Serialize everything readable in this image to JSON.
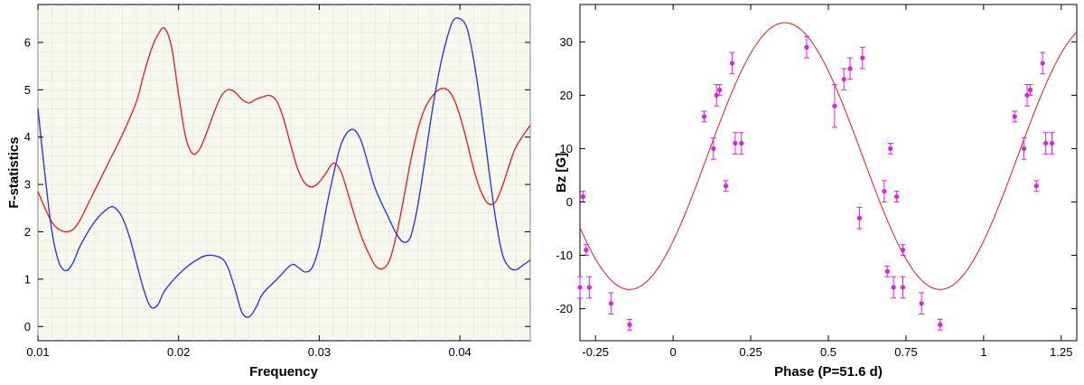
{
  "chart_data": [
    {
      "type": "line",
      "title": "",
      "xlabel": "Frequency",
      "ylabel": "F-statistics",
      "xlim": [
        0.01,
        0.045
      ],
      "ylim": [
        -0.3,
        6.8
      ],
      "xticks": [
        "0.01",
        "0.02",
        "0.03",
        "0.04"
      ],
      "yticks": [
        "0",
        "1",
        "2",
        "3",
        "4",
        "5",
        "6"
      ],
      "xtick_values": [
        0.01,
        0.02,
        0.03,
        0.04
      ],
      "ytick_values": [
        0,
        1,
        2,
        3,
        4,
        5,
        6
      ],
      "grid": true,
      "series": [
        {
          "color": "#e8191b",
          "points": [
            [
              0.01,
              2.85
            ],
            [
              0.0105,
              2.5
            ],
            [
              0.011,
              2.2
            ],
            [
              0.0115,
              2.05
            ],
            [
              0.012,
              2.0
            ],
            [
              0.0125,
              2.05
            ],
            [
              0.013,
              2.25
            ],
            [
              0.0135,
              2.55
            ],
            [
              0.014,
              2.85
            ],
            [
              0.015,
              3.45
            ],
            [
              0.016,
              4.05
            ],
            [
              0.017,
              4.75
            ],
            [
              0.0175,
              5.3
            ],
            [
              0.018,
              5.8
            ],
            [
              0.0185,
              6.15
            ],
            [
              0.019,
              6.3
            ],
            [
              0.0195,
              5.9
            ],
            [
              0.02,
              4.9
            ],
            [
              0.0205,
              4.0
            ],
            [
              0.021,
              3.65
            ],
            [
              0.0215,
              3.75
            ],
            [
              0.022,
              4.1
            ],
            [
              0.0225,
              4.5
            ],
            [
              0.023,
              4.85
            ],
            [
              0.0235,
              5.0
            ],
            [
              0.024,
              4.95
            ],
            [
              0.0245,
              4.8
            ],
            [
              0.025,
              4.72
            ],
            [
              0.0255,
              4.8
            ],
            [
              0.026,
              4.85
            ],
            [
              0.0265,
              4.88
            ],
            [
              0.027,
              4.75
            ],
            [
              0.0275,
              4.35
            ],
            [
              0.028,
              3.8
            ],
            [
              0.0285,
              3.3
            ],
            [
              0.029,
              3.02
            ],
            [
              0.0295,
              2.95
            ],
            [
              0.03,
              3.05
            ],
            [
              0.0305,
              3.25
            ],
            [
              0.031,
              3.45
            ],
            [
              0.0315,
              3.3
            ],
            [
              0.032,
              2.85
            ],
            [
              0.0325,
              2.35
            ],
            [
              0.033,
              1.9
            ],
            [
              0.0335,
              1.55
            ],
            [
              0.034,
              1.28
            ],
            [
              0.0345,
              1.22
            ],
            [
              0.035,
              1.4
            ],
            [
              0.0355,
              1.95
            ],
            [
              0.036,
              2.7
            ],
            [
              0.0365,
              3.5
            ],
            [
              0.037,
              4.15
            ],
            [
              0.0375,
              4.6
            ],
            [
              0.038,
              4.85
            ],
            [
              0.0385,
              5.0
            ],
            [
              0.039,
              5.02
            ],
            [
              0.0395,
              4.85
            ],
            [
              0.04,
              4.45
            ],
            [
              0.0405,
              3.9
            ],
            [
              0.041,
              3.3
            ],
            [
              0.0415,
              2.85
            ],
            [
              0.042,
              2.6
            ],
            [
              0.0425,
              2.62
            ],
            [
              0.043,
              2.95
            ],
            [
              0.0435,
              3.4
            ],
            [
              0.044,
              3.8
            ],
            [
              0.045,
              4.25
            ]
          ]
        },
        {
          "color": "#1f2fe0",
          "points": [
            [
              0.01,
              4.6
            ],
            [
              0.0105,
              3.2
            ],
            [
              0.011,
              2.0
            ],
            [
              0.0115,
              1.35
            ],
            [
              0.012,
              1.18
            ],
            [
              0.0125,
              1.35
            ],
            [
              0.013,
              1.7
            ],
            [
              0.014,
              2.2
            ],
            [
              0.015,
              2.5
            ],
            [
              0.0155,
              2.5
            ],
            [
              0.016,
              2.3
            ],
            [
              0.0165,
              1.9
            ],
            [
              0.017,
              1.35
            ],
            [
              0.0175,
              0.8
            ],
            [
              0.018,
              0.42
            ],
            [
              0.0185,
              0.45
            ],
            [
              0.019,
              0.75
            ],
            [
              0.02,
              1.1
            ],
            [
              0.021,
              1.35
            ],
            [
              0.022,
              1.5
            ],
            [
              0.023,
              1.45
            ],
            [
              0.0235,
              1.25
            ],
            [
              0.024,
              0.8
            ],
            [
              0.0245,
              0.3
            ],
            [
              0.025,
              0.2
            ],
            [
              0.0255,
              0.4
            ],
            [
              0.026,
              0.7
            ],
            [
              0.027,
              1.0
            ],
            [
              0.028,
              1.3
            ],
            [
              0.0285,
              1.25
            ],
            [
              0.029,
              1.15
            ],
            [
              0.0295,
              1.25
            ],
            [
              0.03,
              1.7
            ],
            [
              0.0305,
              2.5
            ],
            [
              0.031,
              3.2
            ],
            [
              0.0315,
              3.8
            ],
            [
              0.032,
              4.1
            ],
            [
              0.0325,
              4.15
            ],
            [
              0.033,
              3.9
            ],
            [
              0.0335,
              3.4
            ],
            [
              0.034,
              2.9
            ],
            [
              0.035,
              2.25
            ],
            [
              0.0355,
              1.95
            ],
            [
              0.036,
              1.78
            ],
            [
              0.0365,
              1.9
            ],
            [
              0.037,
              2.55
            ],
            [
              0.0375,
              3.5
            ],
            [
              0.038,
              4.5
            ],
            [
              0.0385,
              5.35
            ],
            [
              0.039,
              6.0
            ],
            [
              0.0395,
              6.45
            ],
            [
              0.04,
              6.5
            ],
            [
              0.0405,
              6.3
            ],
            [
              0.041,
              5.6
            ],
            [
              0.0415,
              4.6
            ],
            [
              0.042,
              3.45
            ],
            [
              0.0425,
              2.35
            ],
            [
              0.043,
              1.55
            ],
            [
              0.0435,
              1.25
            ],
            [
              0.044,
              1.2
            ],
            [
              0.0445,
              1.3
            ],
            [
              0.045,
              1.4
            ]
          ]
        }
      ]
    },
    {
      "type": "scatter",
      "title": "",
      "xlabel": "Phase (P=51.6 d)",
      "ylabel": "Bz [G]",
      "xlim": [
        -0.3,
        1.3
      ],
      "ylim": [
        -26,
        37
      ],
      "xticks": [
        "-0.25",
        "0",
        "0.25",
        "0.5",
        "0.75",
        "1",
        "1.25"
      ],
      "yticks": [
        "-20",
        "-10",
        "0",
        "10",
        "20",
        "30"
      ],
      "xtick_values": [
        -0.25,
        0,
        0.25,
        0.5,
        0.75,
        1,
        1.25
      ],
      "ytick_values": [
        -20,
        -10,
        0,
        10,
        20,
        30
      ],
      "grid": false,
      "fit": {
        "mean": 8.6,
        "amplitude": 25,
        "max_phase": 0.36,
        "color": "#e8191b"
      },
      "points_color": "#e01ee6",
      "points": [
        {
          "x": -0.3,
          "y": -16,
          "err": 2
        },
        {
          "x": -0.29,
          "y": 1,
          "err": 1
        },
        {
          "x": -0.28,
          "y": -9,
          "err": 1
        },
        {
          "x": -0.27,
          "y": -16,
          "err": 2
        },
        {
          "x": -0.2,
          "y": -19,
          "err": 2
        },
        {
          "x": -0.14,
          "y": -23,
          "err": 1
        },
        {
          "x": 0.1,
          "y": 16,
          "err": 1
        },
        {
          "x": 0.13,
          "y": 10,
          "err": 2
        },
        {
          "x": 0.14,
          "y": 20,
          "err": 2
        },
        {
          "x": 0.15,
          "y": 21,
          "err": 1
        },
        {
          "x": 0.17,
          "y": 3,
          "err": 1
        },
        {
          "x": 0.19,
          "y": 26,
          "err": 2
        },
        {
          "x": 0.2,
          "y": 11,
          "err": 2
        },
        {
          "x": 0.22,
          "y": 11,
          "err": 2
        },
        {
          "x": 0.43,
          "y": 29,
          "err": 2
        },
        {
          "x": 0.52,
          "y": 18,
          "err": 4
        },
        {
          "x": 0.55,
          "y": 23,
          "err": 2
        },
        {
          "x": 0.57,
          "y": 25,
          "err": 2
        },
        {
          "x": 0.6,
          "y": -3,
          "err": 2
        },
        {
          "x": 0.61,
          "y": 27,
          "err": 2
        },
        {
          "x": 0.68,
          "y": 2,
          "err": 2
        },
        {
          "x": 0.69,
          "y": -13,
          "err": 1
        },
        {
          "x": 0.7,
          "y": 10,
          "err": 1
        },
        {
          "x": 0.71,
          "y": -16,
          "err": 2
        },
        {
          "x": 0.72,
          "y": 1,
          "err": 1
        },
        {
          "x": 0.74,
          "y": -9,
          "err": 1
        },
        {
          "x": 0.74,
          "y": -16,
          "err": 2
        },
        {
          "x": 0.8,
          "y": -19,
          "err": 2
        },
        {
          "x": 0.86,
          "y": -23,
          "err": 1
        },
        {
          "x": 1.1,
          "y": 16,
          "err": 1
        },
        {
          "x": 1.13,
          "y": 10,
          "err": 2
        },
        {
          "x": 1.14,
          "y": 20,
          "err": 2
        },
        {
          "x": 1.15,
          "y": 21,
          "err": 1
        },
        {
          "x": 1.17,
          "y": 3,
          "err": 1
        },
        {
          "x": 1.19,
          "y": 26,
          "err": 2
        },
        {
          "x": 1.2,
          "y": 11,
          "err": 2
        },
        {
          "x": 1.22,
          "y": 11,
          "err": 2
        }
      ]
    }
  ]
}
